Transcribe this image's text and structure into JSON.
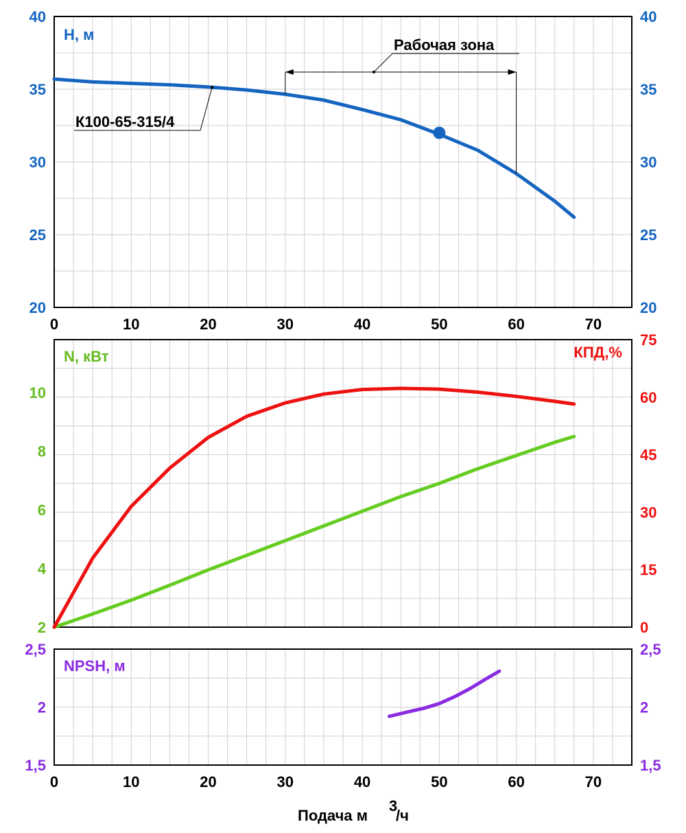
{
  "colors": {
    "head": "#1565c0",
    "power": "#66cc22",
    "efficiency": "#ee1111",
    "npsh": "#8a2be2",
    "axis": "#000000",
    "grid": "#cfcfcf"
  },
  "chart_data": [
    {
      "type": "line",
      "id": "head-chart",
      "series_label": "Н, м",
      "curve_label": "К100-65-315/4",
      "annotation": "Рабочая зона",
      "working_zone": [
        30,
        60
      ],
      "operating_point": {
        "x": 50,
        "y": 32
      },
      "xlim": [
        0,
        75
      ],
      "ylim": [
        20,
        40
      ],
      "x_ticks": [
        "0",
        "10",
        "20",
        "30",
        "40",
        "50",
        "60",
        "70"
      ],
      "y_ticks": [
        "20",
        "25",
        "30",
        "35",
        "40"
      ],
      "grid": true,
      "series": [
        {
          "name": "К100-65-315/4",
          "x": [
            0,
            5,
            10,
            15,
            20,
            25,
            30,
            35,
            40,
            45,
            50,
            55,
            60,
            65,
            67.5
          ],
          "y": [
            35.7,
            35.5,
            35.4,
            35.3,
            35.15,
            34.95,
            34.65,
            34.25,
            33.6,
            32.9,
            31.9,
            30.8,
            29.2,
            27.3,
            26.2
          ]
        }
      ]
    },
    {
      "type": "line",
      "id": "power-eff-chart",
      "left_label": "N, кВт",
      "right_label": "КПД,%",
      "xlim": [
        0,
        75
      ],
      "ylim_left": [
        2,
        11.8
      ],
      "ylim_right": [
        0,
        75
      ],
      "y_ticks_left": [
        "2",
        "4",
        "6",
        "8",
        "10"
      ],
      "y_ticks_right": [
        "0",
        "15",
        "30",
        "45",
        "60",
        "75"
      ],
      "grid": true,
      "series": [
        {
          "name": "N, кВт",
          "axis": "left",
          "x": [
            0,
            5,
            10,
            15,
            20,
            25,
            30,
            35,
            40,
            45,
            50,
            55,
            60,
            65,
            67.5
          ],
          "y": [
            2.0,
            2.45,
            2.92,
            3.43,
            3.95,
            4.45,
            4.95,
            5.45,
            5.95,
            6.45,
            6.9,
            7.4,
            7.85,
            8.3,
            8.5
          ]
        },
        {
          "name": "КПД,%",
          "axis": "right",
          "x": [
            0,
            5,
            10,
            15,
            20,
            25,
            30,
            35,
            40,
            45,
            50,
            55,
            60,
            65,
            67.5
          ],
          "y": [
            0,
            18,
            31.5,
            41.5,
            49.5,
            55,
            58.5,
            60.8,
            62,
            62.3,
            62.1,
            61.3,
            60.2,
            58.9,
            58.2
          ]
        }
      ]
    },
    {
      "type": "line",
      "id": "npsh-chart",
      "series_label": "NPSH, м",
      "xlim": [
        0,
        75
      ],
      "ylim": [
        1.5,
        2.5
      ],
      "x_ticks": [
        "0",
        "10",
        "20",
        "30",
        "40",
        "50",
        "60",
        "70"
      ],
      "y_ticks": [
        "1,5",
        "2",
        "2,5"
      ],
      "xlabel": "Подача м",
      "xlabel_sup": "3",
      "xlabel_end": "/ч",
      "grid": true,
      "series": [
        {
          "name": "NPSH, м",
          "x": [
            43.5,
            46,
            48,
            50,
            52,
            54,
            56,
            57.8
          ],
          "y": [
            1.92,
            1.96,
            1.99,
            2.03,
            2.09,
            2.16,
            2.24,
            2.31
          ]
        }
      ]
    }
  ]
}
